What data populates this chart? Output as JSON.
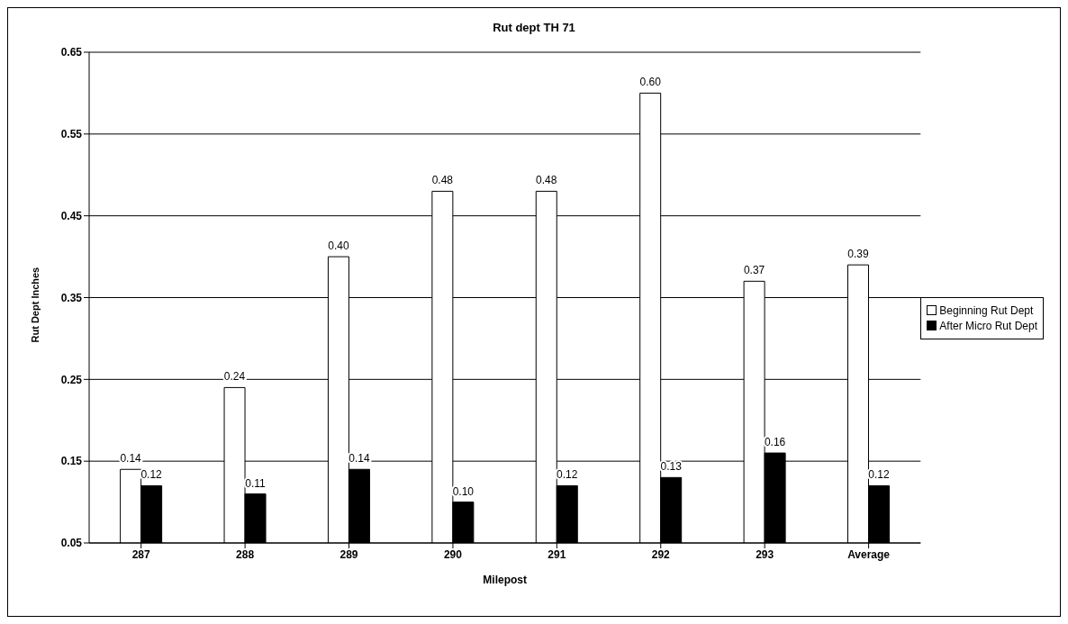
{
  "chart_data": {
    "type": "bar",
    "title": "Rut dept TH 71",
    "xlabel": "Milepost",
    "ylabel": "Rut Dept Inches",
    "categories": [
      "287",
      "288",
      "289",
      "290",
      "291",
      "292",
      "293",
      "Average"
    ],
    "series": [
      {
        "name": "Beginning Rut Dept",
        "color": "#ffffff",
        "values": [
          0.14,
          0.24,
          0.4,
          0.48,
          0.48,
          0.6,
          0.37,
          0.39
        ],
        "value_labels": [
          "0.14",
          "0.24",
          "0.40",
          "0.48",
          "0.48",
          "0.60",
          "0.37",
          "0.39"
        ]
      },
      {
        "name": "After Micro Rut Dept",
        "color": "#000000",
        "values": [
          0.12,
          0.11,
          0.14,
          0.1,
          0.12,
          0.13,
          0.16,
          0.12
        ],
        "value_labels": [
          "0.12",
          "0.11",
          "0.14",
          "0.10",
          "0.12",
          "0.13",
          "0.16",
          "0.12"
        ]
      }
    ],
    "ylim": [
      0.05,
      0.65
    ],
    "yticks": [
      0.05,
      0.15,
      0.25,
      0.35,
      0.45,
      0.55,
      0.65
    ],
    "grid": "y",
    "legend": "right"
  }
}
